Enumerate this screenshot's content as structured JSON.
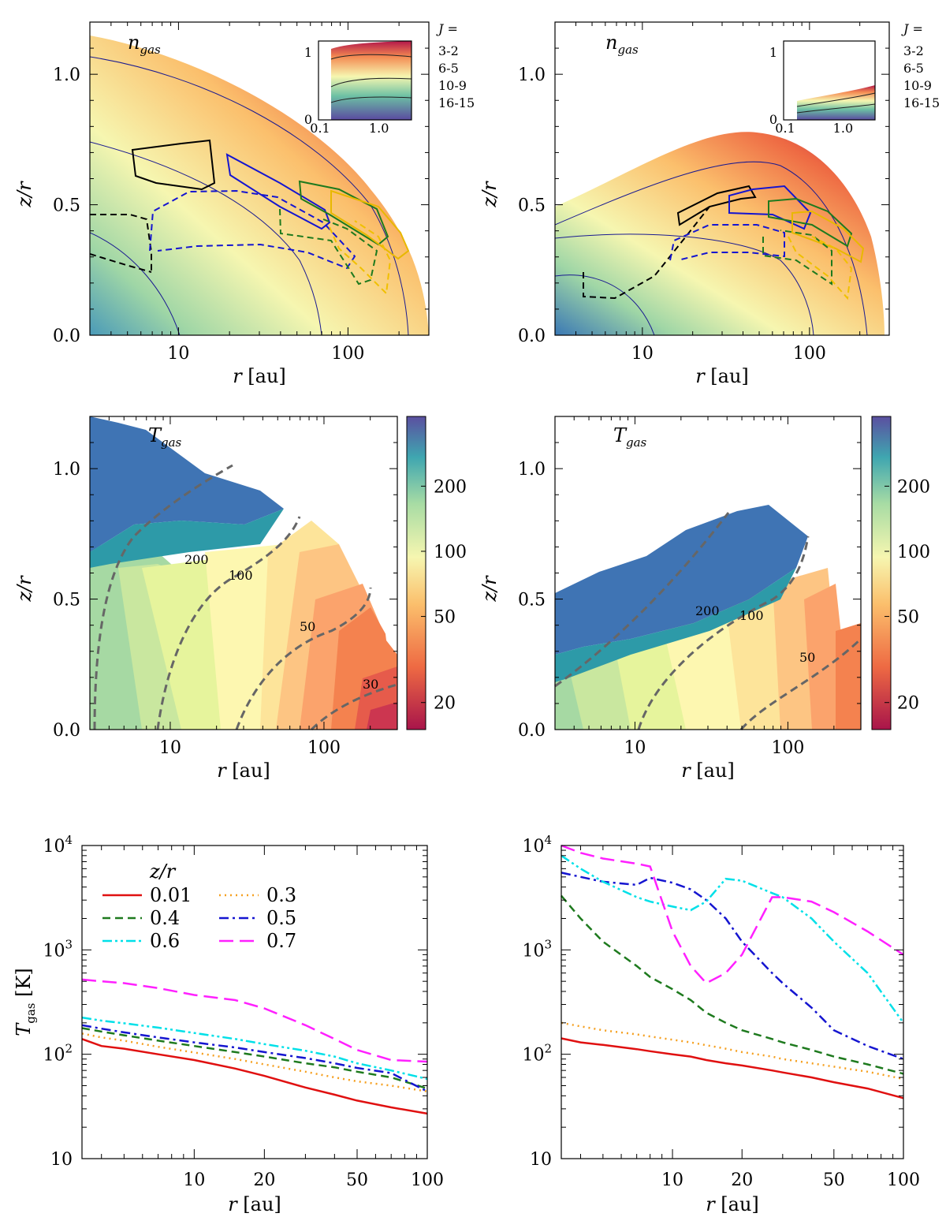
{
  "panels": {
    "top_left": {
      "label": "n",
      "sub": "gas",
      "xlabel_var": "r",
      "xlabel_unit": " [au]",
      "ylabel": "z/r",
      "xticks": [
        "10",
        "100"
      ],
      "yticks": [
        "0.0",
        "0.5",
        "1.0"
      ],
      "inset_xticks": [
        "0.1",
        "1.0"
      ],
      "inset_yticks": [
        "0",
        "1"
      ]
    },
    "top_right": {
      "label": "n",
      "sub": "gas",
      "xlabel_var": "r",
      "xlabel_unit": " [au]",
      "ylabel": "z/r",
      "xticks": [
        "10",
        "100"
      ],
      "yticks": [
        "0.0",
        "0.5",
        "1.0"
      ],
      "inset_xticks": [
        "0.1",
        "1.0"
      ],
      "inset_yticks": [
        "0",
        "1"
      ]
    },
    "mid_left": {
      "label": "T",
      "sub": "gas",
      "xlabel_var": "r",
      "xlabel_unit": " [au]",
      "ylabel": "z/r",
      "xticks": [
        "10",
        "100"
      ],
      "yticks": [
        "0.0",
        "0.5",
        "1.0"
      ],
      "contour_labels": [
        "200",
        "100",
        "50",
        "30"
      ],
      "colorbar_ticks": [
        "20",
        "50",
        "100",
        "200"
      ]
    },
    "mid_right": {
      "label": "T",
      "sub": "gas",
      "xlabel_var": "r",
      "xlabel_unit": " [au]",
      "ylabel": "z/r",
      "xticks": [
        "10",
        "100"
      ],
      "yticks": [
        "0.0",
        "0.5",
        "1.0"
      ],
      "contour_labels": [
        "200",
        "100",
        "50"
      ],
      "colorbar_ticks": [
        "20",
        "50",
        "100",
        "200"
      ]
    }
  },
  "transitions_legend": {
    "title": "J =",
    "items": [
      {
        "label": "3-2",
        "color": "#f0c000"
      },
      {
        "label": "6-5",
        "color": "#1e7a1e"
      },
      {
        "label": "10-9",
        "color": "#1515d0"
      },
      {
        "label": "16-15",
        "color": "#000000"
      }
    ]
  },
  "chart_data": [
    {
      "type": "line",
      "title": "",
      "xlabel": "r [au]",
      "ylabel": "T_gas [K]",
      "xscale": "log",
      "yscale": "log",
      "xlim": [
        3.3,
        100
      ],
      "ylim": [
        10,
        10000
      ],
      "xticks": [
        "10",
        "20",
        "50",
        "100"
      ],
      "yticks": [
        "10",
        "10^2",
        "10^3",
        "10^4"
      ],
      "legend_title": "z/r",
      "x": [
        3.3,
        4,
        5,
        7,
        10,
        15,
        20,
        30,
        40,
        50,
        70,
        100
      ],
      "series": [
        {
          "name": "0.01",
          "color": "#e01010",
          "dash": "solid",
          "values": [
            140,
            120,
            113,
            100,
            88,
            73,
            62,
            48,
            41,
            36,
            31,
            27
          ]
        },
        {
          "name": "0.3",
          "color": "#f5a020",
          "dash": "dotted",
          "values": [
            158,
            145,
            135,
            118,
            104,
            90,
            80,
            68,
            60,
            55,
            50,
            44
          ]
        },
        {
          "name": "0.4",
          "color": "#1e7a1e",
          "dash": "dashed",
          "values": [
            178,
            165,
            152,
            135,
            120,
            105,
            95,
            82,
            75,
            68,
            60,
            47
          ]
        },
        {
          "name": "0.5",
          "color": "#1515d0",
          "dash": "dashdot",
          "values": [
            190,
            176,
            162,
            145,
            130,
            116,
            105,
            92,
            82,
            74,
            66,
            44
          ]
        },
        {
          "name": "0.6",
          "color": "#00e0e8",
          "dash": "dashdotdot",
          "values": [
            225,
            210,
            198,
            180,
            160,
            140,
            125,
            108,
            95,
            82,
            70,
            58
          ]
        },
        {
          "name": "0.7",
          "color": "#ff20ff",
          "dash": "longdash",
          "values": [
            520,
            500,
            480,
            430,
            370,
            330,
            275,
            190,
            140,
            110,
            88,
            85
          ]
        }
      ]
    },
    {
      "type": "line",
      "title": "",
      "xlabel": "r [au]",
      "ylabel": "",
      "xscale": "log",
      "yscale": "log",
      "xlim": [
        3.3,
        100
      ],
      "ylim": [
        10,
        10000
      ],
      "xticks": [
        "10",
        "20",
        "50",
        "100"
      ],
      "yticks": [
        "10",
        "10^2",
        "10^3",
        "10^4"
      ],
      "x": [
        3.3,
        4,
        5,
        7,
        8,
        10,
        12,
        14,
        17,
        20,
        27,
        30,
        40,
        50,
        70,
        100
      ],
      "series": [
        {
          "name": "0.01",
          "color": "#e01010",
          "dash": "solid",
          "values": [
            142,
            130,
            123,
            112,
            107,
            100,
            95,
            88,
            82,
            78,
            70,
            67,
            60,
            54,
            47,
            38
          ]
        },
        {
          "name": "0.3",
          "color": "#f5a020",
          "dash": "dotted",
          "values": [
            200,
            185,
            170,
            155,
            148,
            138,
            130,
            122,
            113,
            105,
            95,
            90,
            82,
            76,
            68,
            58
          ]
        },
        {
          "name": "0.4",
          "color": "#1e7a1e",
          "dash": "dashed",
          "values": [
            3300,
            2000,
            1200,
            700,
            550,
            420,
            330,
            250,
            200,
            170,
            140,
            130,
            110,
            95,
            80,
            65
          ]
        },
        {
          "name": "0.5",
          "color": "#1515d0",
          "dash": "dashdot",
          "values": [
            5500,
            5000,
            4500,
            4200,
            4900,
            4400,
            3800,
            3000,
            2000,
            1200,
            600,
            480,
            280,
            170,
            120,
            90
          ]
        },
        {
          "name": "0.6",
          "color": "#00e0e8",
          "dash": "dashdotdot",
          "values": [
            8000,
            6000,
            4500,
            3200,
            2900,
            2600,
            2400,
            2900,
            4800,
            4600,
            3500,
            3200,
            2000,
            1200,
            600,
            200
          ]
        },
        {
          "name": "0.7",
          "color": "#ff20ff",
          "dash": "longdash",
          "values": [
            10000,
            8500,
            7500,
            6700,
            6300,
            1500,
            700,
            480,
            600,
            900,
            3200,
            3200,
            2900,
            2300,
            1500,
            900
          ]
        }
      ]
    }
  ]
}
